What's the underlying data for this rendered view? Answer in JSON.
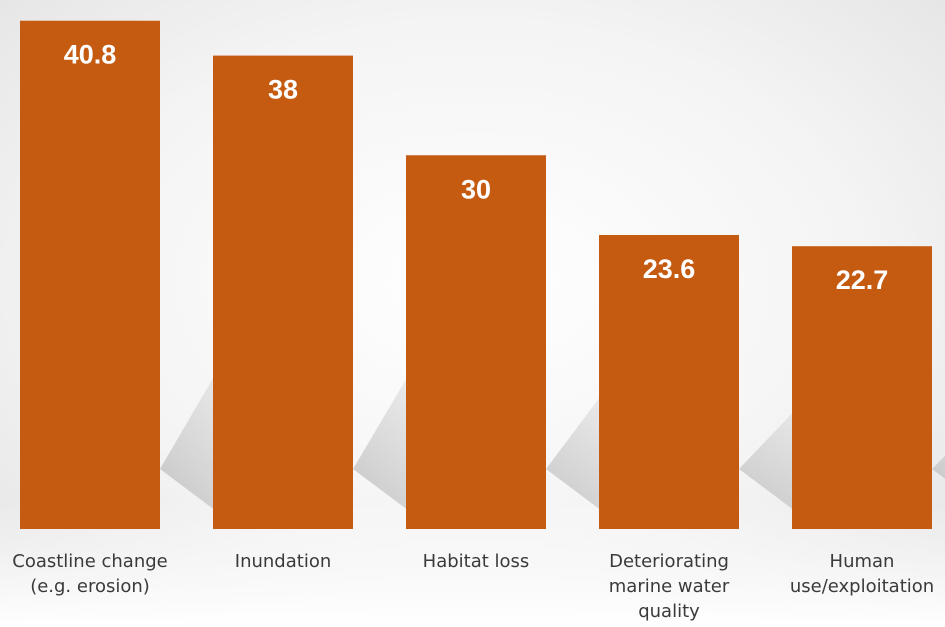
{
  "chart_data": {
    "type": "bar",
    "categories": [
      [
        "Coastline change",
        "(e.g. erosion)"
      ],
      [
        "Inundation"
      ],
      [
        "Habitat loss"
      ],
      [
        "Deteriorating",
        "marine water",
        "quality"
      ],
      [
        "Human",
        "use/exploitation"
      ]
    ],
    "values": [
      40.8,
      38,
      30,
      23.6,
      22.7
    ],
    "value_labels": [
      "40.8",
      "38",
      "30",
      "23.6",
      "22.7"
    ],
    "title": "",
    "xlabel": "",
    "ylabel": "",
    "ylim": [
      0,
      41.5
    ],
    "grid": false,
    "legend": "none",
    "colors": {
      "bar": "#C55A11",
      "label": "#FFFFFF",
      "category_text": "#3A3A3A"
    }
  }
}
